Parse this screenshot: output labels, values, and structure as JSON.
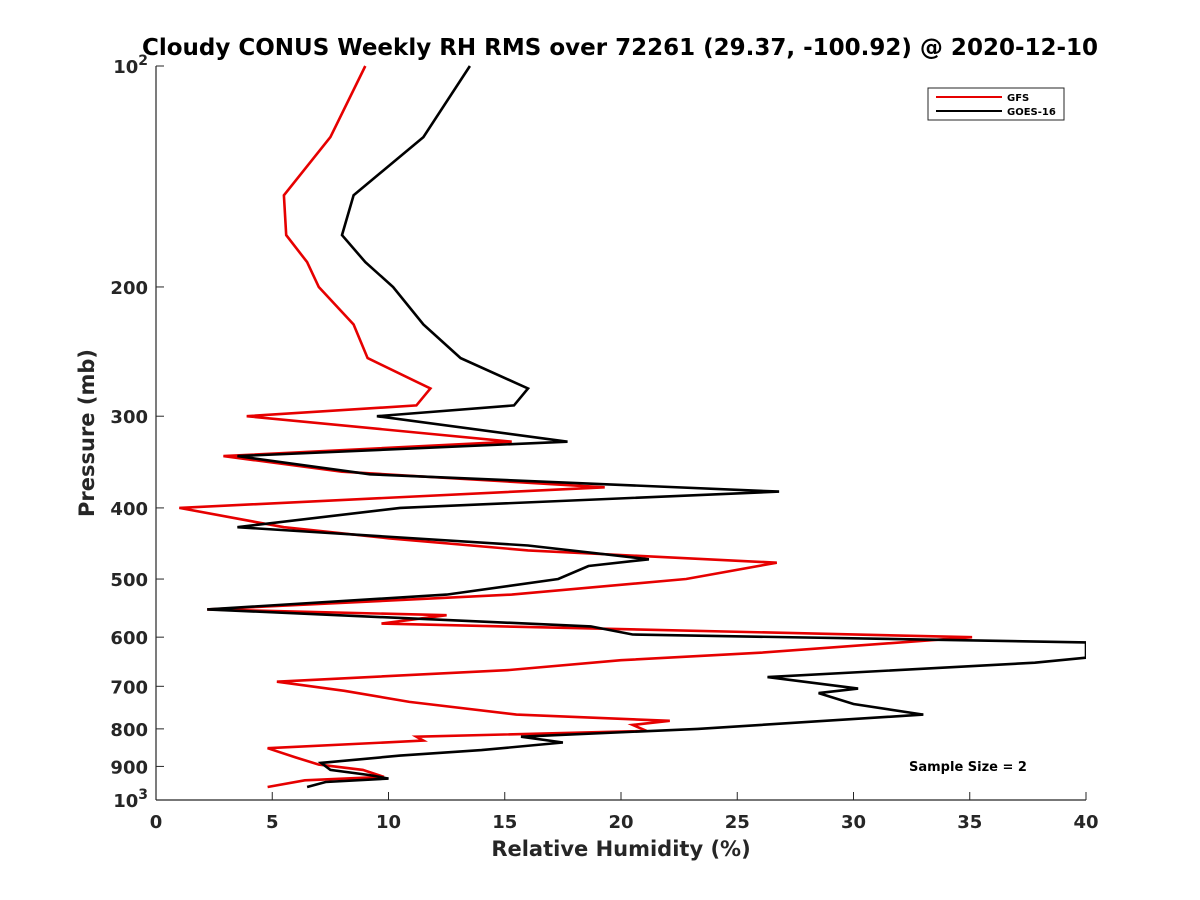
{
  "chart_data": {
    "type": "line",
    "title": "Cloudy CONUS Weekly RH RMS over 72261 (29.37, -100.92) @ 2020-12-10",
    "xlabel": "Relative Humidity (%)",
    "ylabel": "Pressure (mb)",
    "xlim": [
      0,
      40
    ],
    "ylim": [
      100,
      1000
    ],
    "y_scale": "log",
    "y_reversed": true,
    "x_ticks": [
      "0",
      "5",
      "10",
      "15",
      "20",
      "25",
      "30",
      "35",
      "40"
    ],
    "x_tick_values": [
      0,
      5,
      10,
      15,
      20,
      25,
      30,
      35,
      40
    ],
    "y_ticks": [
      {
        "value": 100,
        "base": "10",
        "exp": "2"
      },
      {
        "value": 200,
        "label": "200"
      },
      {
        "value": 300,
        "label": "300"
      },
      {
        "value": 400,
        "label": "400"
      },
      {
        "value": 500,
        "label": "500"
      },
      {
        "value": 600,
        "label": "600"
      },
      {
        "value": 700,
        "label": "700"
      },
      {
        "value": 800,
        "label": "800"
      },
      {
        "value": 900,
        "label": "900"
      },
      {
        "value": 1000,
        "base": "10",
        "exp": "3"
      }
    ],
    "grid": false,
    "legend_position": "top-right",
    "annotation": "Sample Size = 2",
    "series": [
      {
        "name": "GFS",
        "color": "#e60000",
        "points": [
          [
            9.0,
            100
          ],
          [
            7.5,
            125
          ],
          [
            5.5,
            150
          ],
          [
            5.6,
            170
          ],
          [
            6.5,
            185
          ],
          [
            7.0,
            200
          ],
          [
            8.5,
            225
          ],
          [
            9.1,
            250
          ],
          [
            11.8,
            275
          ],
          [
            11.2,
            290
          ],
          [
            3.9,
            300
          ],
          [
            15.3,
            325
          ],
          [
            2.9,
            340
          ],
          [
            8.0,
            357
          ],
          [
            19.3,
            375
          ],
          [
            1.0,
            400
          ],
          [
            5.5,
            425
          ],
          [
            10.0,
            440
          ],
          [
            16.0,
            457
          ],
          [
            26.7,
            475
          ],
          [
            22.8,
            500
          ],
          [
            15.3,
            525
          ],
          [
            2.2,
            550
          ],
          [
            12.5,
            560
          ],
          [
            9.7,
            575
          ],
          [
            35.1,
            600
          ],
          [
            26.0,
            630
          ],
          [
            20.0,
            645
          ],
          [
            15.2,
            665
          ],
          [
            5.2,
            690
          ],
          [
            8.1,
            710
          ],
          [
            10.9,
            735
          ],
          [
            15.5,
            765
          ],
          [
            22.1,
            780
          ],
          [
            20.5,
            790
          ],
          [
            21.1,
            805
          ],
          [
            11.2,
            820
          ],
          [
            11.5,
            830
          ],
          [
            4.8,
            850
          ],
          [
            6.0,
            875
          ],
          [
            7.0,
            895
          ],
          [
            8.9,
            910
          ],
          [
            9.8,
            930
          ],
          [
            6.4,
            940
          ],
          [
            4.8,
            960
          ]
        ]
      },
      {
        "name": "GOES-16",
        "color": "#000000",
        "points": [
          [
            13.5,
            100
          ],
          [
            11.5,
            125
          ],
          [
            8.5,
            150
          ],
          [
            8.0,
            170
          ],
          [
            9.0,
            185
          ],
          [
            10.2,
            200
          ],
          [
            11.5,
            225
          ],
          [
            13.1,
            250
          ],
          [
            16.0,
            275
          ],
          [
            15.4,
            290
          ],
          [
            9.5,
            300
          ],
          [
            17.7,
            325
          ],
          [
            3.5,
            340
          ],
          [
            9.2,
            360
          ],
          [
            26.8,
            380
          ],
          [
            10.5,
            400
          ],
          [
            3.5,
            425
          ],
          [
            16.0,
            450
          ],
          [
            21.2,
            470
          ],
          [
            18.6,
            480
          ],
          [
            17.3,
            500
          ],
          [
            12.5,
            525
          ],
          [
            2.2,
            550
          ],
          [
            18.7,
            580
          ],
          [
            20.5,
            595
          ],
          [
            40.0,
            610
          ],
          [
            40.0,
            640
          ],
          [
            37.8,
            650
          ],
          [
            26.3,
            680
          ],
          [
            30.2,
            705
          ],
          [
            28.5,
            715
          ],
          [
            30.0,
            740
          ],
          [
            33.0,
            765
          ],
          [
            23.3,
            800
          ],
          [
            15.7,
            820
          ],
          [
            17.5,
            835
          ],
          [
            14.0,
            855
          ],
          [
            10.5,
            870
          ],
          [
            7.1,
            890
          ],
          [
            7.5,
            910
          ],
          [
            9.2,
            925
          ],
          [
            10.0,
            935
          ],
          [
            7.3,
            945
          ],
          [
            6.5,
            960
          ]
        ]
      }
    ]
  }
}
